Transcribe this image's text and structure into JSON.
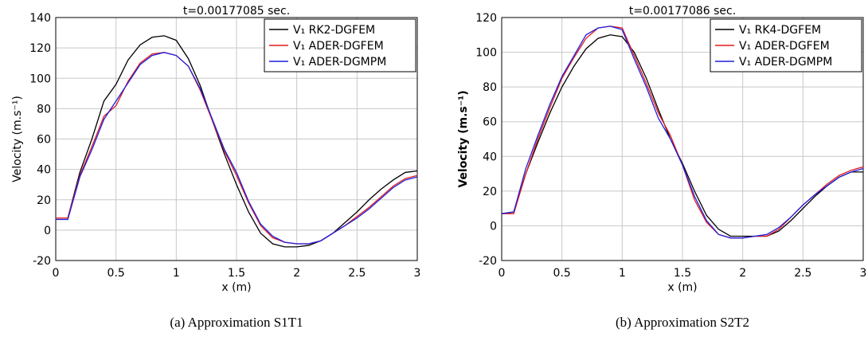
{
  "chart_data": [
    {
      "type": "line",
      "title": "t=0.00177085 sec.",
      "x_label": "x (m)",
      "y_label": "Velocity (m.s⁻¹)",
      "caption": "(a) Approximation S1T1",
      "x": [
        0,
        0.1,
        0.2,
        0.3,
        0.4,
        0.5,
        0.6,
        0.7,
        0.8,
        0.9,
        1,
        1.1,
        1.2,
        1.3,
        1.4,
        1.5,
        1.6,
        1.7,
        1.8,
        1.9,
        2,
        2.1,
        2.2,
        2.3,
        2.4,
        2.5,
        2.6,
        2.7,
        2.8,
        2.9,
        3
      ],
      "xlim": [
        0,
        3
      ],
      "xticks": [
        0,
        0.5,
        1,
        1.5,
        2,
        2.5,
        3
      ],
      "ylim": [
        -20,
        140
      ],
      "yticks": [
        -20,
        0,
        20,
        40,
        60,
        80,
        100,
        120,
        140
      ],
      "grid": true,
      "legend": "upper right",
      "series": [
        {
          "name": "V₁ RK2-DGFEM",
          "color": "#000000",
          "values": [
            8,
            8,
            38,
            60,
            85,
            96,
            112,
            122,
            127,
            128,
            125,
            113,
            95,
            72,
            50,
            30,
            12,
            -2,
            -9,
            -11,
            -11,
            -10,
            -7,
            -2,
            5,
            12,
            20,
            27,
            33,
            38,
            39
          ]
        },
        {
          "name": "V₁ ADER-DGFEM",
          "color": "#e41a1c",
          "values": [
            8,
            8,
            36,
            55,
            75,
            82,
            98,
            110,
            116,
            117,
            115,
            108,
            92,
            72,
            52,
            36,
            18,
            3,
            -5,
            -8,
            -9,
            -9,
            -7,
            -2,
            3,
            9,
            15,
            22,
            29,
            34,
            36
          ]
        },
        {
          "name": "V₁ ADER-DGMPM",
          "color": "#1f1fdd",
          "values": [
            7,
            7,
            35,
            53,
            73,
            85,
            97,
            109,
            115,
            117,
            115,
            108,
            93,
            73,
            53,
            38,
            19,
            4,
            -4,
            -8,
            -9,
            -9,
            -7,
            -2,
            3,
            8,
            14,
            21,
            28,
            33,
            35
          ]
        }
      ]
    },
    {
      "type": "line",
      "title": "t=0.00177086 sec.",
      "x_label": "x (m)",
      "y_label": "Velocity (m.s⁻¹)",
      "caption": "(b) Approximation S2T2",
      "x": [
        0,
        0.1,
        0.2,
        0.3,
        0.4,
        0.5,
        0.6,
        0.7,
        0.8,
        0.9,
        1,
        1.1,
        1.2,
        1.3,
        1.4,
        1.5,
        1.6,
        1.7,
        1.8,
        1.9,
        2,
        2.1,
        2.2,
        2.3,
        2.4,
        2.5,
        2.6,
        2.7,
        2.8,
        2.9,
        3
      ],
      "xlim": [
        0,
        3
      ],
      "xticks": [
        0,
        0.5,
        1,
        1.5,
        2,
        2.5,
        3
      ],
      "ylim": [
        -20,
        120
      ],
      "yticks": [
        -20,
        0,
        20,
        40,
        60,
        80,
        100,
        120
      ],
      "grid": true,
      "legend": "upper right",
      "series": [
        {
          "name": "V₁ RK4-DGFEM",
          "color": "#000000",
          "values": [
            7,
            8,
            30,
            48,
            65,
            80,
            92,
            102,
            108,
            110,
            109,
            100,
            85,
            67,
            50,
            36,
            20,
            6,
            -2,
            -6,
            -6,
            -6,
            -6,
            -3,
            3,
            10,
            17,
            23,
            28,
            31,
            31
          ]
        },
        {
          "name": "V₁ ADER-DGFEM",
          "color": "#e41a1c",
          "values": [
            7,
            7,
            30,
            50,
            68,
            85,
            97,
            108,
            114,
            115,
            114,
            98,
            82,
            65,
            52,
            35,
            15,
            2,
            -5,
            -7,
            -7,
            -6,
            -6,
            -2,
            5,
            12,
            18,
            24,
            29,
            32,
            34
          ]
        },
        {
          "name": "V₁ ADER-DGMPM",
          "color": "#1f1fdd",
          "values": [
            7,
            8,
            33,
            52,
            70,
            86,
            98,
            110,
            114,
            115,
            113,
            96,
            80,
            62,
            50,
            35,
            17,
            3,
            -5,
            -7,
            -7,
            -6,
            -5,
            -1,
            5,
            12,
            18,
            23,
            28,
            31,
            33
          ]
        }
      ]
    }
  ]
}
